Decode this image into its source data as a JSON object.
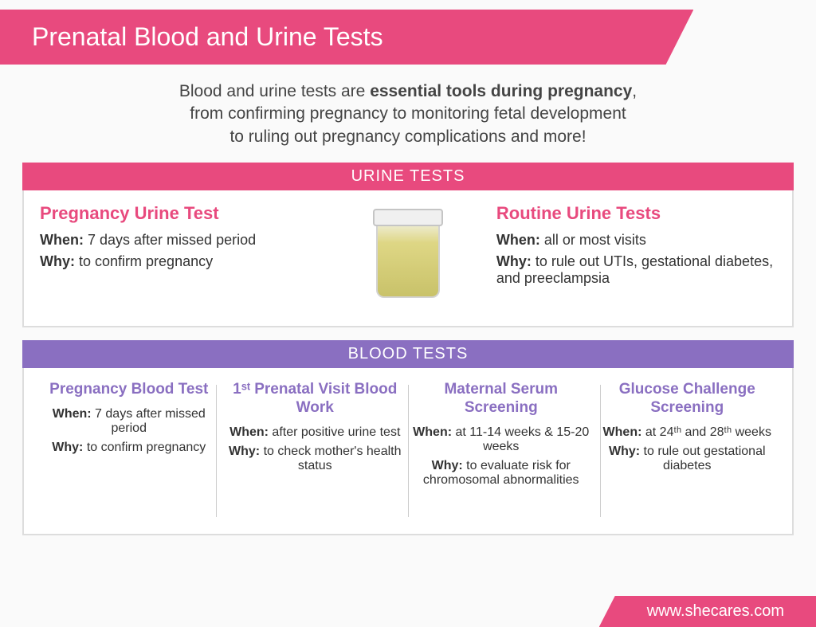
{
  "title": "Prenatal Blood and Urine Tests",
  "intro": {
    "line1_pre": "Blood and urine tests are ",
    "line1_bold": "essential tools during pregnancy",
    "line1_post": ",",
    "line2": "from confirming pregnancy to monitoring fetal development",
    "line3": "to ruling out pregnancy complications and more!"
  },
  "sections": {
    "urine": {
      "header": "URINE TESTS",
      "left": {
        "title": "Pregnancy Urine Test",
        "when_label": "When:",
        "when": "7 days after missed period",
        "why_label": "Why:",
        "why": "to confirm pregnancy"
      },
      "right": {
        "title": "Routine Urine Tests",
        "when_label": "When:",
        "when": "all or most visits",
        "why_label": "Why:",
        "why": "to rule out UTIs, gestational diabetes, and preeclampsia"
      }
    },
    "blood": {
      "header": "BLOOD TESTS",
      "cols": [
        {
          "title": "Pregnancy Blood Test",
          "when_label": "When:",
          "when": "7 days after missed period",
          "why_label": "Why:",
          "why": "to confirm pregnancy"
        },
        {
          "title": "1ˢᵗ Prenatal Visit Blood Work",
          "when_label": "When:",
          "when": "after positive urine test",
          "why_label": "Why:",
          "why": "to check mother's health status"
        },
        {
          "title": "Maternal Serum Screening",
          "when_label": "When:",
          "when": "at 11-14 weeks & 15-20 weeks",
          "why_label": "Why:",
          "why": "to evaluate risk for chromosomal abnormalities"
        },
        {
          "title": "Glucose Challenge Screening",
          "when_label": "When:",
          "when": "at 24ᵗʰ and 28ᵗʰ weeks",
          "why_label": "Why:",
          "why": "to rule out gestational diabetes"
        }
      ]
    }
  },
  "footer": "www.shecares.com",
  "colors": {
    "pink": "#e84a7e",
    "purple": "#8a6fc1",
    "text": "#333333",
    "bg": "#fafafa",
    "panel_border": "#dddddd"
  }
}
